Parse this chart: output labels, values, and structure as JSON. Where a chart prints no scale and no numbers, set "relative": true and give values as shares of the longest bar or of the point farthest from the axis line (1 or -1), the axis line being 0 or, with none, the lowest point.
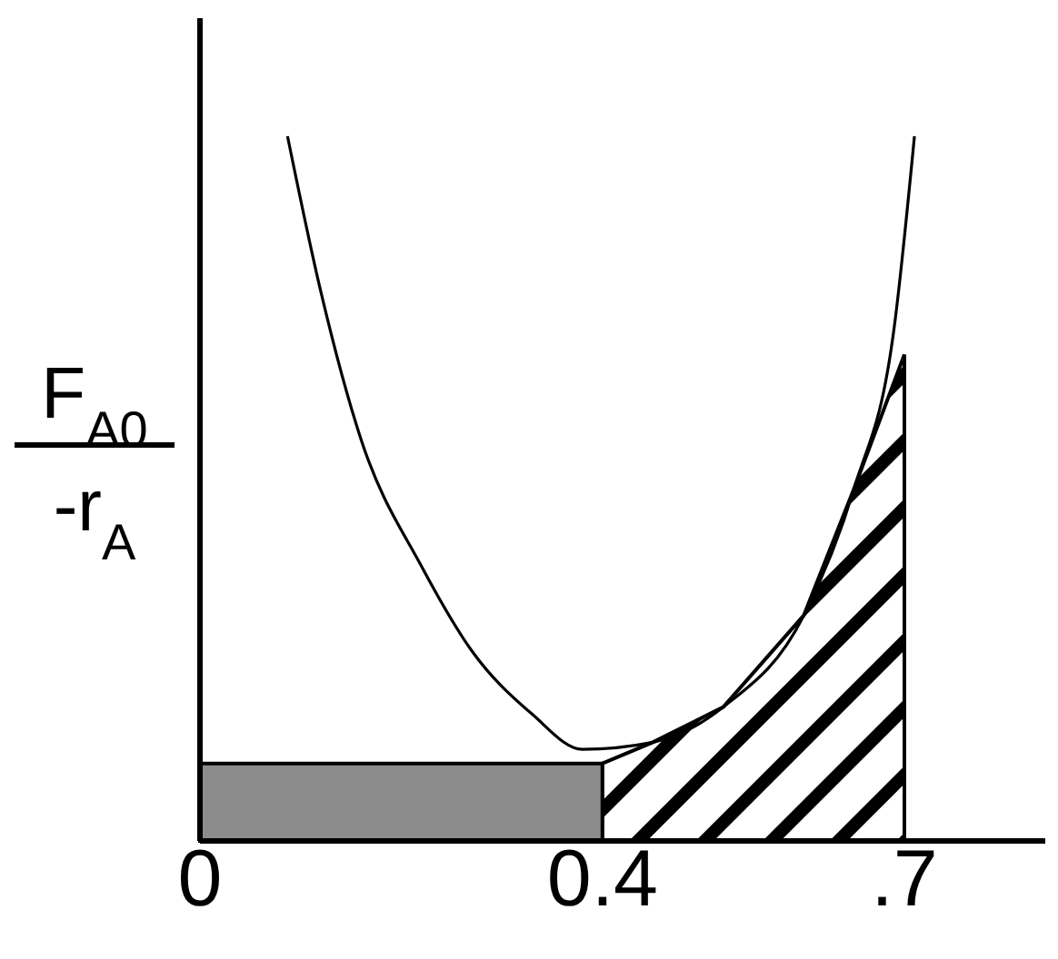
{
  "chart_data": {
    "type": "line",
    "relative": true,
    "ylabel": "F$_{A0}$\n-r$_{A}$",
    "xlim": [
      0,
      0.84
    ],
    "xticks": [
      0,
      {
        "value": 0.4,
        "label": "0.4"
      },
      {
        "value": 0.7,
        "label": ".7"
      }
    ],
    "series": [
      {
        "type": "area",
        "color": "#8c8c8c",
        "x": [
          0,
          0.4
        ],
        "values": [
          0.11,
          0.11
        ]
      },
      {
        "type": "area",
        "color": "#000000",
        "x": [
          0.4,
          0.45,
          0.52,
          0.6,
          0.65,
          0.7
        ],
        "values": [
          0.11,
          0.14,
          0.19,
          0.32,
          0.5,
          0.69
        ]
      },
      {
        "color": "#000000",
        "x": [
          0.087,
          0.12,
          0.16,
          0.22,
          0.27,
          0.33,
          0.38,
          0.45,
          0.52,
          0.6,
          0.65,
          0.69,
          0.71
        ],
        "values": [
          1,
          0.78,
          0.57,
          0.39,
          0.27,
          0.18,
          0.13,
          0.14,
          0.19,
          0.32,
          0.5,
          0.73,
          1
        ]
      }
    ]
  }
}
